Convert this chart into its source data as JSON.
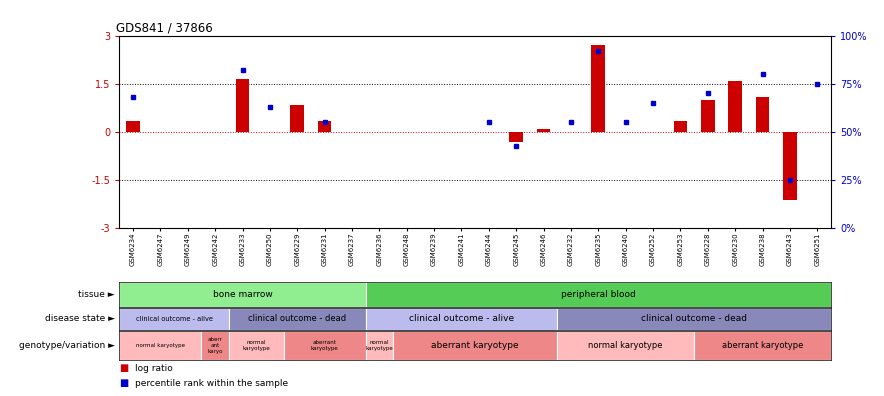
{
  "title": "GDS841 / 37866",
  "samples": [
    "GSM6234",
    "GSM6247",
    "GSM6249",
    "GSM6242",
    "GSM6233",
    "GSM6250",
    "GSM6229",
    "GSM6231",
    "GSM6237",
    "GSM6236",
    "GSM6248",
    "GSM6239",
    "GSM6241",
    "GSM6244",
    "GSM6245",
    "GSM6246",
    "GSM6232",
    "GSM6235",
    "GSM6240",
    "GSM6252",
    "GSM6253",
    "GSM6228",
    "GSM6230",
    "GSM6238",
    "GSM6243",
    "GSM6251"
  ],
  "log_ratio": [
    0.35,
    0.0,
    0.0,
    0.0,
    1.65,
    0.0,
    0.85,
    0.35,
    0.0,
    0.0,
    0.0,
    0.0,
    0.0,
    0.0,
    -0.3,
    0.1,
    0.0,
    2.7,
    0.0,
    0.0,
    0.35,
    1.0,
    1.6,
    1.1,
    -2.1,
    0.0
  ],
  "percentile": [
    68,
    0,
    0,
    0,
    82,
    63,
    0,
    55,
    0,
    0,
    0,
    0,
    0,
    55,
    43,
    0,
    55,
    92,
    55,
    65,
    0,
    70,
    0,
    80,
    25,
    75
  ],
  "tissue_groups": [
    {
      "label": "bone marrow",
      "start": 0,
      "end": 9,
      "color": "#90EE90"
    },
    {
      "label": "peripheral blood",
      "start": 9,
      "end": 26,
      "color": "#55CC55"
    }
  ],
  "disease_groups": [
    {
      "label": "clinical outcome - alive",
      "start": 0,
      "end": 4,
      "color": "#BBBBEE"
    },
    {
      "label": "clinical outcome - dead",
      "start": 4,
      "end": 9,
      "color": "#8888BB"
    },
    {
      "label": "clinical outcome - alive",
      "start": 9,
      "end": 16,
      "color": "#BBBBEE"
    },
    {
      "label": "clinical outcome - dead",
      "start": 16,
      "end": 26,
      "color": "#8888BB"
    }
  ],
  "geno_groups": [
    {
      "label": "normal karyotype",
      "start": 0,
      "end": 3,
      "color": "#FFBBBB"
    },
    {
      "label": "aberr\nant\nkaryo",
      "start": 3,
      "end": 4,
      "color": "#EE8888"
    },
    {
      "label": "normal\nkaryotype",
      "start": 4,
      "end": 6,
      "color": "#FFBBBB"
    },
    {
      "label": "aberrant\nkaryotype",
      "start": 6,
      "end": 9,
      "color": "#EE8888"
    },
    {
      "label": "normal\nkaryotype",
      "start": 9,
      "end": 10,
      "color": "#FFBBBB"
    },
    {
      "label": "aberrant karyotype",
      "start": 10,
      "end": 16,
      "color": "#EE8888"
    },
    {
      "label": "normal karyotype",
      "start": 16,
      "end": 21,
      "color": "#FFBBBB"
    },
    {
      "label": "aberrant karyotype",
      "start": 21,
      "end": 26,
      "color": "#EE8888"
    }
  ],
  "ylim_left": [
    -3,
    3
  ],
  "ylim_right": [
    0,
    100
  ],
  "yticks_left": [
    -3,
    -1.5,
    0,
    1.5,
    3
  ],
  "yticks_right": [
    0,
    25,
    50,
    75,
    100
  ],
  "ytick_labels_right": [
    "0%",
    "25%",
    "50%",
    "75%",
    "100%"
  ],
  "bar_color_red": "#CC0000",
  "bar_color_blue": "#0000CC",
  "bg_color": "#FFFFFF",
  "row_labels": [
    "tissue",
    "disease state",
    "genotype/variation"
  ],
  "legend_items": [
    {
      "color": "#CC0000",
      "label": "log ratio"
    },
    {
      "color": "#0000CC",
      "label": "percentile rank within the sample"
    }
  ]
}
